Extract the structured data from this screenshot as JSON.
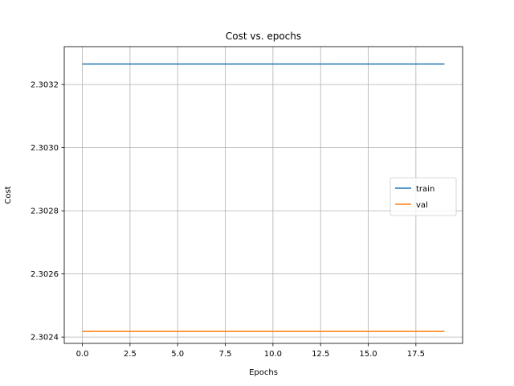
{
  "chart_data": {
    "type": "line",
    "title": "Cost vs. epochs",
    "xlabel": "Epochs",
    "ylabel": "Cost",
    "xlim": [
      -0.95,
      19.95
    ],
    "ylim": [
      2.30238,
      2.30332
    ],
    "x_ticks": [
      0.0,
      2.5,
      5.0,
      7.5,
      10.0,
      12.5,
      15.0,
      17.5
    ],
    "x_tick_labels": [
      "0.0",
      "2.5",
      "5.0",
      "7.5",
      "10.0",
      "12.5",
      "15.0",
      "17.5"
    ],
    "y_ticks": [
      2.3024,
      2.3026,
      2.3028,
      2.303,
      2.3032
    ],
    "y_tick_labels": [
      "2.3024",
      "2.3026",
      "2.3028",
      "2.3030",
      "2.3032"
    ],
    "grid": true,
    "legend_position": "center-right",
    "x": [
      0,
      1,
      2,
      3,
      4,
      5,
      6,
      7,
      8,
      9,
      10,
      11,
      12,
      13,
      14,
      15,
      16,
      17,
      18,
      19
    ],
    "series": [
      {
        "name": "train",
        "color": "#1f77b4",
        "values": [
          2.303265,
          2.303265,
          2.303265,
          2.303265,
          2.303265,
          2.303265,
          2.303265,
          2.303265,
          2.303265,
          2.303265,
          2.303265,
          2.303265,
          2.303265,
          2.303265,
          2.303265,
          2.303265,
          2.303265,
          2.303265,
          2.303265,
          2.303265
        ]
      },
      {
        "name": "val",
        "color": "#ff7f0e",
        "values": [
          2.302418,
          2.302418,
          2.302418,
          2.302418,
          2.302418,
          2.302418,
          2.302418,
          2.302418,
          2.302418,
          2.302418,
          2.302418,
          2.302418,
          2.302418,
          2.302418,
          2.302418,
          2.302418,
          2.302418,
          2.302418,
          2.302418,
          2.302418
        ]
      }
    ]
  }
}
